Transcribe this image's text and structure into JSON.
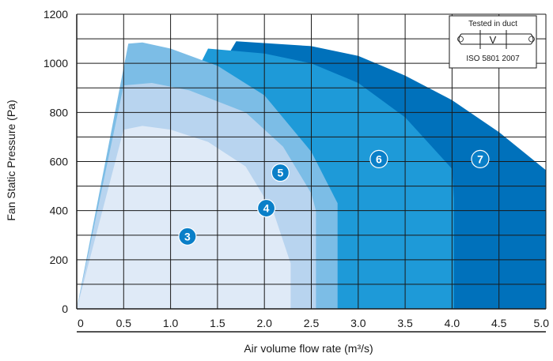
{
  "chart_data": {
    "type": "area",
    "xlabel": "Air volume flow rate (m³/s)",
    "ylabel": "Fan Static Pressure (Pa)",
    "xlim": [
      0,
      5.0
    ],
    "ylim": [
      0,
      1200
    ],
    "x_ticks": [
      "0",
      "0.5",
      "1.0",
      "1.5",
      "2.0",
      "2.5",
      "3.0",
      "3.5",
      "4.0",
      "4.5",
      "5.0"
    ],
    "y_ticks": [
      "0",
      "200",
      "400",
      "600",
      "800",
      "1000",
      "1200"
    ],
    "grid": true,
    "inset": {
      "title": "Tested in duct",
      "symbol": "V",
      "standard": "ISO 5801 2007"
    },
    "series": [
      {
        "name": "7",
        "color": "#0071bb",
        "points": [
          [
            0,
            0
          ],
          [
            1.7,
            1090
          ],
          [
            2.5,
            1070
          ],
          [
            3.0,
            1030
          ],
          [
            3.5,
            950
          ],
          [
            4.0,
            850
          ],
          [
            4.5,
            720
          ],
          [
            5.0,
            565
          ],
          [
            5.0,
            0
          ]
        ]
      },
      {
        "name": "6",
        "color": "#1e9ad8",
        "points": [
          [
            0,
            0
          ],
          [
            1.4,
            1060
          ],
          [
            2.0,
            1040
          ],
          [
            2.5,
            1000
          ],
          [
            3.0,
            920
          ],
          [
            3.5,
            780
          ],
          [
            4.0,
            570
          ],
          [
            4.02,
            450
          ],
          [
            4.02,
            0
          ]
        ]
      },
      {
        "name": "5",
        "color": "#7cbde6",
        "points": [
          [
            0,
            0
          ],
          [
            0.55,
            1080
          ],
          [
            0.7,
            1085
          ],
          [
            1.0,
            1060
          ],
          [
            1.5,
            990
          ],
          [
            2.0,
            870
          ],
          [
            2.5,
            640
          ],
          [
            2.78,
            430
          ],
          [
            2.78,
            190
          ],
          [
            2.78,
            0
          ]
        ]
      },
      {
        "name": "4",
        "color": "#b8d4ef",
        "points": [
          [
            0,
            0
          ],
          [
            0.5,
            910
          ],
          [
            0.8,
            920
          ],
          [
            1.2,
            890
          ],
          [
            1.8,
            800
          ],
          [
            2.2,
            660
          ],
          [
            2.5,
            470
          ],
          [
            2.55,
            400
          ],
          [
            2.55,
            0
          ]
        ]
      },
      {
        "name": "3",
        "color": "#dfeaf7",
        "points": [
          [
            0,
            0
          ],
          [
            0.5,
            730
          ],
          [
            0.7,
            745
          ],
          [
            1.0,
            730
          ],
          [
            1.4,
            680
          ],
          [
            1.8,
            580
          ],
          [
            2.1,
            390
          ],
          [
            2.28,
            185
          ],
          [
            2.28,
            0
          ]
        ]
      }
    ],
    "labels": [
      {
        "text": "3",
        "x": 1.18,
        "y": 295
      },
      {
        "text": "4",
        "x": 2.02,
        "y": 410
      },
      {
        "text": "5",
        "x": 2.17,
        "y": 555
      },
      {
        "text": "6",
        "x": 3.22,
        "y": 610
      },
      {
        "text": "7",
        "x": 4.3,
        "y": 610
      }
    ]
  }
}
